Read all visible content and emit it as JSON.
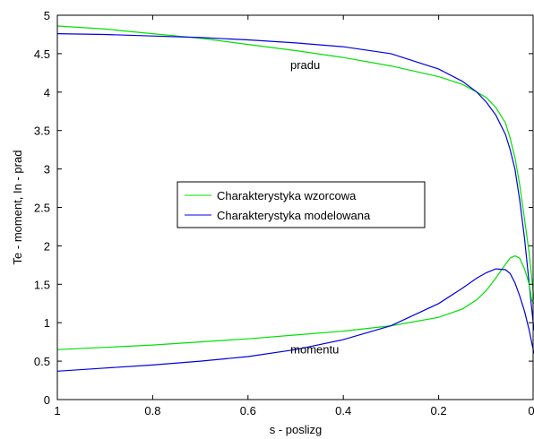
{
  "chart_data": {
    "type": "line",
    "xlabel": "s - poslizg",
    "ylabel": "Te - moment, In - prad",
    "xlim": [
      1,
      0
    ],
    "ylim": [
      0,
      5
    ],
    "x_reversed": true,
    "grid": false,
    "legend_position": "center-left",
    "xticks": [
      1,
      0.8,
      0.6,
      0.4,
      0.2,
      0
    ],
    "xtick_labels": [
      "1",
      "0.8",
      "0.6",
      "0.4",
      "0.2",
      "0"
    ],
    "yticks": [
      0,
      0.5,
      1,
      1.5,
      2,
      2.5,
      3,
      3.5,
      4,
      4.5,
      5
    ],
    "ytick_labels": [
      "0",
      "0.5",
      "1",
      "1.5",
      "2",
      "2.5",
      "3",
      "3.5",
      "4",
      "4.5",
      "5"
    ],
    "annotations": [
      {
        "text": "pradu",
        "x": 0.48,
        "y": 4.3
      },
      {
        "text": "momentu",
        "x": 0.46,
        "y": 0.6
      }
    ],
    "series": [
      {
        "name": "Charakterystyka wzorcowa",
        "color": "#00e000",
        "x": [
          1.0,
          0.9,
          0.8,
          0.7,
          0.6,
          0.5,
          0.4,
          0.3,
          0.2,
          0.15,
          0.12,
          0.1,
          0.08,
          0.06,
          0.05,
          0.04,
          0.03,
          0.02,
          0.01,
          0.005,
          0.0
        ],
        "y": [
          4.86,
          4.82,
          4.76,
          4.7,
          4.62,
          4.54,
          4.45,
          4.34,
          4.2,
          4.1,
          4.0,
          3.93,
          3.8,
          3.6,
          3.4,
          3.15,
          2.8,
          2.35,
          1.9,
          1.6,
          1.3
        ]
      },
      {
        "name": "Charakterystyka modelowana",
        "color": "#0000e0",
        "x": [
          1.0,
          0.9,
          0.8,
          0.7,
          0.6,
          0.5,
          0.4,
          0.3,
          0.2,
          0.15,
          0.12,
          0.1,
          0.08,
          0.06,
          0.05,
          0.04,
          0.03,
          0.02,
          0.01,
          0.005,
          0.0
        ],
        "y": [
          4.76,
          4.75,
          4.73,
          4.71,
          4.68,
          4.64,
          4.59,
          4.5,
          4.3,
          4.14,
          4.0,
          3.87,
          3.7,
          3.45,
          3.25,
          3.0,
          2.6,
          2.1,
          1.5,
          1.2,
          0.9
        ]
      },
      {
        "name": "",
        "color": "#00e000",
        "x": [
          1.0,
          0.9,
          0.8,
          0.7,
          0.6,
          0.5,
          0.4,
          0.3,
          0.2,
          0.15,
          0.12,
          0.1,
          0.08,
          0.06,
          0.05,
          0.04,
          0.03,
          0.02,
          0.01,
          0.005,
          0.0
        ],
        "y": [
          0.65,
          0.68,
          0.71,
          0.75,
          0.79,
          0.84,
          0.89,
          0.96,
          1.07,
          1.18,
          1.3,
          1.42,
          1.58,
          1.76,
          1.84,
          1.87,
          1.84,
          1.7,
          1.5,
          1.3,
          1.25
        ]
      },
      {
        "name": "",
        "color": "#0000e0",
        "x": [
          1.0,
          0.9,
          0.8,
          0.7,
          0.6,
          0.5,
          0.4,
          0.3,
          0.2,
          0.15,
          0.12,
          0.1,
          0.08,
          0.06,
          0.05,
          0.04,
          0.03,
          0.02,
          0.01,
          0.005,
          0.0
        ],
        "y": [
          0.37,
          0.41,
          0.45,
          0.5,
          0.56,
          0.65,
          0.78,
          0.96,
          1.25,
          1.45,
          1.58,
          1.65,
          1.7,
          1.69,
          1.64,
          1.52,
          1.35,
          1.15,
          0.9,
          0.75,
          0.6
        ]
      }
    ]
  }
}
